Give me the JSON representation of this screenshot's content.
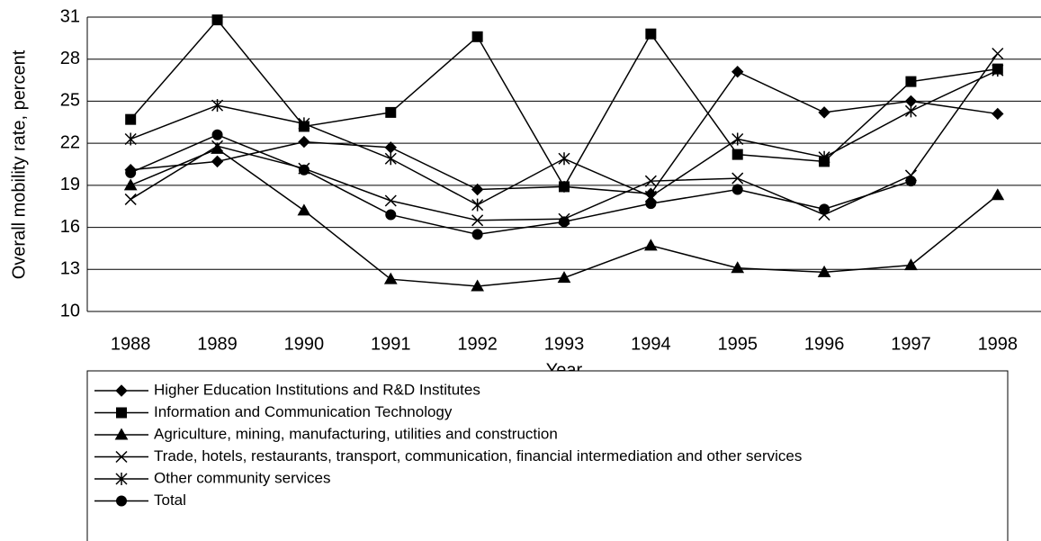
{
  "chart_data": {
    "type": "line",
    "xlabel": "Year",
    "ylabel": "Overall mobility rate, percent",
    "categories": [
      "1988",
      "1989",
      "1990",
      "1991",
      "1992",
      "1993",
      "1994",
      "1995",
      "1996",
      "1997",
      "1998"
    ],
    "ylim": [
      10,
      31
    ],
    "yticks": [
      10,
      13,
      16,
      19,
      22,
      25,
      28,
      31
    ],
    "grid": true,
    "series": [
      {
        "name": "Higher Education Institutions and R&D Institutes",
        "color": "#000000",
        "marker": "diamond",
        "values": [
          20.1,
          20.7,
          22.1,
          21.7,
          18.7,
          18.9,
          18.4,
          27.1,
          24.2,
          25.0,
          24.1
        ]
      },
      {
        "name": "Information and Communication Technology",
        "color": "#000000",
        "marker": "square",
        "values": [
          23.7,
          30.8,
          23.2,
          24.2,
          29.6,
          18.9,
          29.8,
          21.2,
          20.7,
          26.4,
          27.3
        ]
      },
      {
        "name": "Agriculture, mining, manufacturing, utilities and construction",
        "color": "#000000",
        "marker": "triangle",
        "values": [
          19.0,
          21.6,
          17.2,
          12.3,
          11.8,
          12.4,
          14.7,
          13.1,
          12.8,
          13.3,
          18.3
        ]
      },
      {
        "name": "Trade, hotels, restaurants, transport, communication, financial intermediation and other services",
        "color": "#000000",
        "marker": "x",
        "values": [
          18.0,
          21.8,
          20.2,
          17.9,
          16.5,
          16.6,
          19.3,
          19.5,
          16.9,
          19.7,
          28.4
        ]
      },
      {
        "name": "Other community services",
        "color": "#000000",
        "marker": "asterisk",
        "values": [
          22.3,
          24.7,
          23.4,
          20.9,
          17.6,
          20.9,
          18.2,
          22.3,
          21.0,
          24.3,
          27.2
        ]
      },
      {
        "name": "Total",
        "color": "#000000",
        "marker": "circle",
        "values": [
          19.9,
          22.6,
          20.1,
          16.9,
          15.5,
          16.4,
          17.7,
          18.7,
          17.3,
          19.3,
          null
        ]
      }
    ]
  }
}
